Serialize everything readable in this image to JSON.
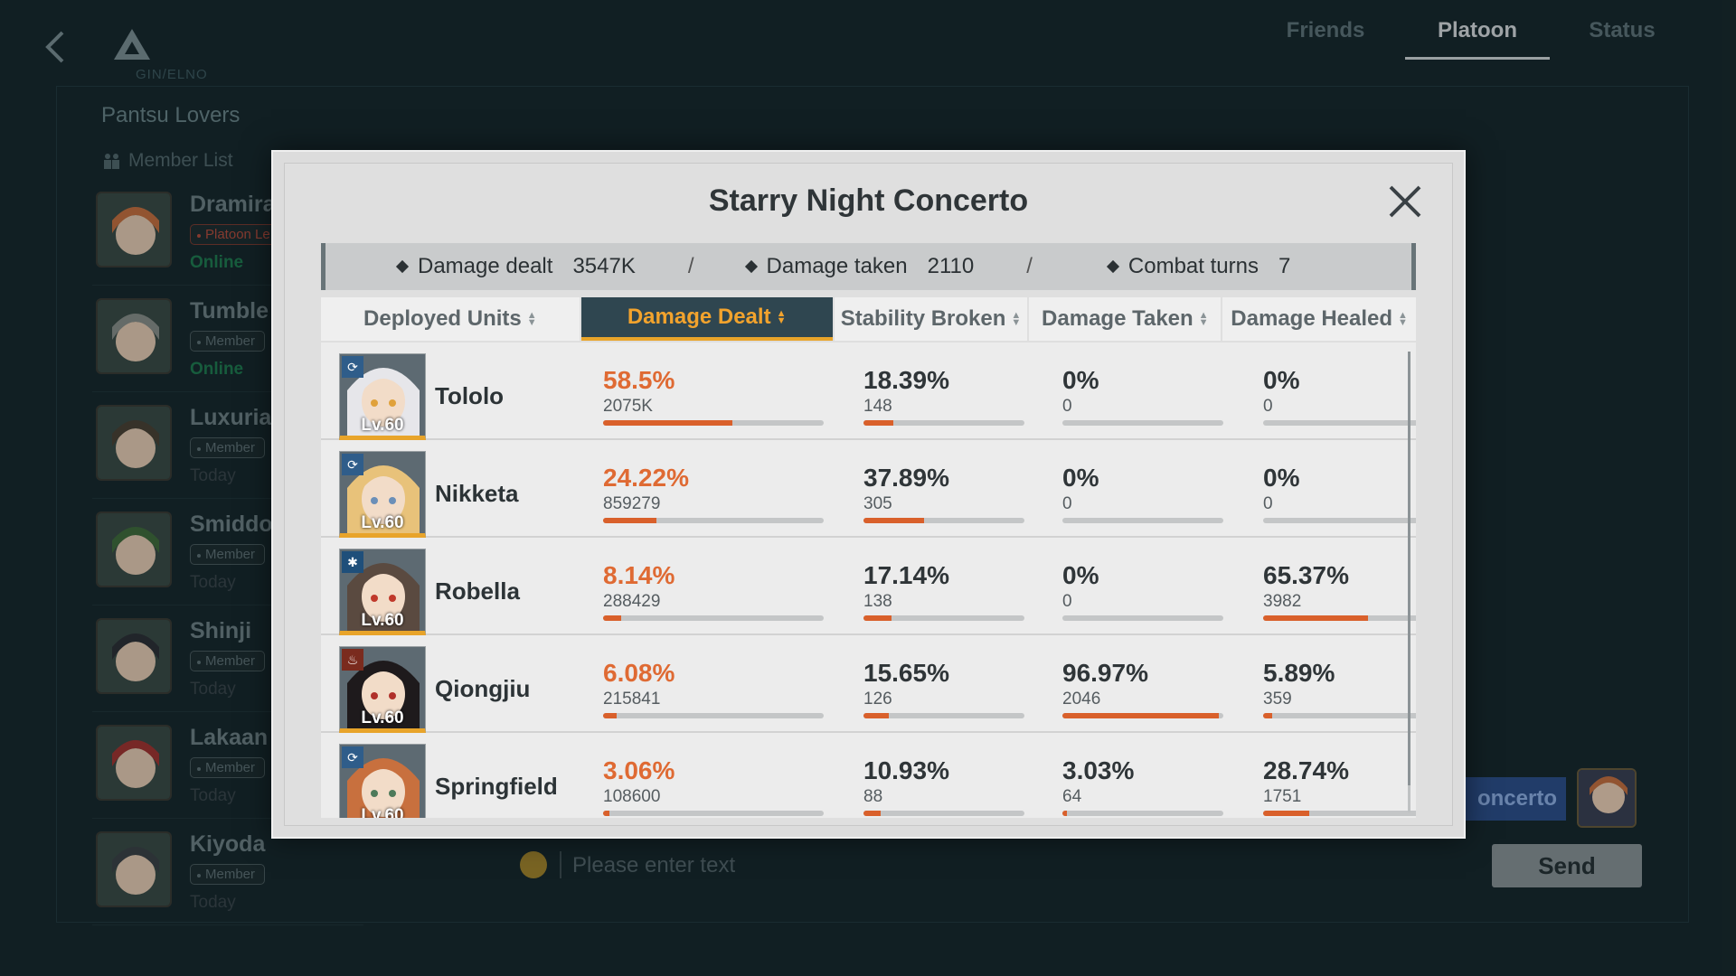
{
  "background": {
    "logo_text": "GIN/ELNO",
    "tabs": [
      {
        "label": "Friends",
        "active": false
      },
      {
        "label": "Platoon",
        "active": true
      },
      {
        "label": "Status",
        "active": false
      }
    ],
    "platoon_name": "Pantsu Lovers",
    "member_list_title": "Member List",
    "members": [
      {
        "name": "Dramira",
        "role": "Platoon Le",
        "status": "Online",
        "leader": true,
        "online": true
      },
      {
        "name": "Tumble",
        "role": "Member",
        "status": "Online",
        "leader": false,
        "online": true
      },
      {
        "name": "Luxuria",
        "role": "Member",
        "status": "Today",
        "leader": false,
        "online": false
      },
      {
        "name": "Smiddo",
        "role": "Member",
        "status": "Today",
        "leader": false,
        "online": false
      },
      {
        "name": "Shinji",
        "role": "Member",
        "status": "Today",
        "leader": false,
        "online": false
      },
      {
        "name": "Lakaan",
        "role": "Member",
        "status": "Today",
        "leader": false,
        "online": false
      },
      {
        "name": "Kiyoda",
        "role": "Member",
        "status": "Today",
        "leader": false,
        "online": false
      }
    ],
    "chat": {
      "placeholder": "Please enter text",
      "send_label": "Send",
      "event_chip": "oncerto"
    }
  },
  "modal": {
    "title": "Starry Night Concerto",
    "summary": {
      "damage_dealt_label": "Damage dealt",
      "damage_dealt_value": "3547K",
      "damage_taken_label": "Damage taken",
      "damage_taken_value": "2110",
      "combat_turns_label": "Combat turns",
      "combat_turns_value": "7",
      "separator": "/"
    },
    "columns": [
      {
        "label": "Deployed Units",
        "active": false
      },
      {
        "label": "Damage Dealt",
        "active": true
      },
      {
        "label": "Stability Broken",
        "active": false
      },
      {
        "label": "Damage Taken",
        "active": false
      },
      {
        "label": "Damage Healed",
        "active": false
      }
    ],
    "rows": [
      {
        "name": "Tololo",
        "level": "Lv.60",
        "class_icon": "sync-icon",
        "dealt_pct": "58.5%",
        "dealt_num": "2075K",
        "dealt_frac": 0.585,
        "stab_pct": "18.39%",
        "stab_num": "148",
        "stab_frac": 0.1839,
        "taken_pct": "0%",
        "taken_num": "0",
        "taken_frac": 0,
        "healed_pct": "0%",
        "healed_num": "0",
        "healed_frac": 0,
        "hair": "#e6e6ea",
        "eyes": "#e0a13a"
      },
      {
        "name": "Nikketa",
        "level": "Lv.60",
        "class_icon": "sync-icon",
        "dealt_pct": "24.22%",
        "dealt_num": "859279",
        "dealt_frac": 0.2422,
        "stab_pct": "37.89%",
        "stab_num": "305",
        "stab_frac": 0.3789,
        "taken_pct": "0%",
        "taken_num": "0",
        "taken_frac": 0,
        "healed_pct": "0%",
        "healed_num": "0",
        "healed_frac": 0,
        "hair": "#e8c27a",
        "eyes": "#6b8fb8"
      },
      {
        "name": "Robella",
        "level": "Lv.60",
        "class_icon": "snowflake-icon",
        "dealt_pct": "8.14%",
        "dealt_num": "288429",
        "dealt_frac": 0.0814,
        "stab_pct": "17.14%",
        "stab_num": "138",
        "stab_frac": 0.1714,
        "taken_pct": "0%",
        "taken_num": "0",
        "taken_frac": 0,
        "healed_pct": "65.37%",
        "healed_num": "3982",
        "healed_frac": 0.6537,
        "hair": "#5a4a40",
        "eyes": "#c0392b"
      },
      {
        "name": "Qiongjiu",
        "level": "Lv.60",
        "class_icon": "flame-icon",
        "dealt_pct": "6.08%",
        "dealt_num": "215841",
        "dealt_frac": 0.0608,
        "stab_pct": "15.65%",
        "stab_num": "126",
        "stab_frac": 0.1565,
        "taken_pct": "96.97%",
        "taken_num": "2046",
        "taken_frac": 0.9697,
        "healed_pct": "5.89%",
        "healed_num": "359",
        "healed_frac": 0.0589,
        "hair": "#1e1a1c",
        "eyes": "#b0302a"
      },
      {
        "name": "Springfield",
        "level": "Lv.60",
        "class_icon": "sync-icon",
        "dealt_pct": "3.06%",
        "dealt_num": "108600",
        "dealt_frac": 0.0306,
        "stab_pct": "10.93%",
        "stab_num": "88",
        "stab_frac": 0.1093,
        "taken_pct": "3.03%",
        "taken_num": "64",
        "taken_frac": 0.0303,
        "healed_pct": "28.74%",
        "healed_num": "1751",
        "healed_frac": 0.2874,
        "hair": "#c8703e",
        "eyes": "#4e7a5a"
      }
    ]
  }
}
